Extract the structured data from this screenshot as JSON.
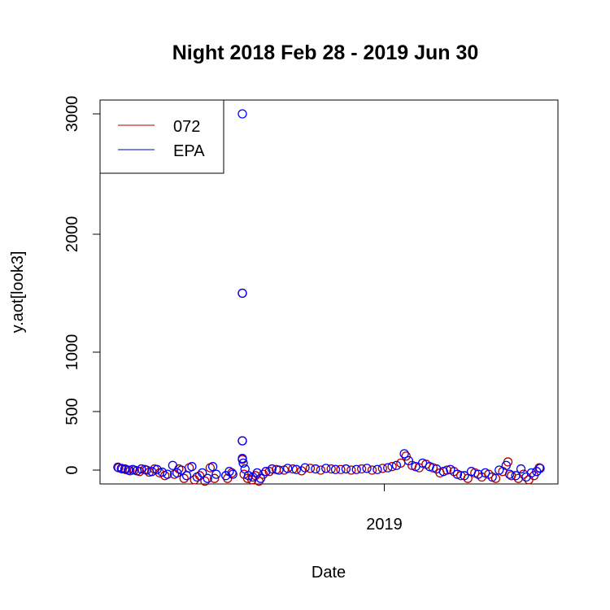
{
  "chart_data": {
    "type": "scatter",
    "title": "Night  2018 Feb 28 - 2019 Jun 30",
    "xlabel": "Date",
    "ylabel": "y.aot[look3]",
    "x_range": [
      "2018-02-28",
      "2019-06-30"
    ],
    "ylim": [
      -100,
      3100
    ],
    "x_ticks": [
      {
        "date": "2019-01-01",
        "label": "2019"
      }
    ],
    "y_ticks": [
      0,
      500,
      1000,
      2000,
      3000
    ],
    "legend": {
      "position": "top-left",
      "entries": [
        {
          "label": "072",
          "color": "#b00000"
        },
        {
          "label": "EPA",
          "color": "#0000cc"
        }
      ]
    },
    "series": [
      {
        "name": "072",
        "color": "#b00000",
        "points": [
          {
            "x": "2018-03-02",
            "y": 20
          },
          {
            "x": "2018-03-06",
            "y": 10
          },
          {
            "x": "2018-03-10",
            "y": 5
          },
          {
            "x": "2018-03-15",
            "y": -5
          },
          {
            "x": "2018-03-20",
            "y": 0
          },
          {
            "x": "2018-03-26",
            "y": -10
          },
          {
            "x": "2018-04-01",
            "y": 5
          },
          {
            "x": "2018-04-06",
            "y": -15
          },
          {
            "x": "2018-04-12",
            "y": 10
          },
          {
            "x": "2018-04-18",
            "y": -20
          },
          {
            "x": "2018-04-24",
            "y": -40
          },
          {
            "x": "2018-05-05",
            "y": -30
          },
          {
            "x": "2018-05-10",
            "y": 10
          },
          {
            "x": "2018-05-16",
            "y": -60
          },
          {
            "x": "2018-05-22",
            "y": 20
          },
          {
            "x": "2018-05-28",
            "y": -70
          },
          {
            "x": "2018-06-03",
            "y": -40
          },
          {
            "x": "2018-06-09",
            "y": -80
          },
          {
            "x": "2018-06-15",
            "y": 20
          },
          {
            "x": "2018-06-20",
            "y": -60
          },
          {
            "x": "2018-07-05",
            "y": -60
          },
          {
            "x": "2018-07-10",
            "y": -20
          },
          {
            "x": "2018-07-22",
            "y": 1500
          },
          {
            "x": "2018-07-22",
            "y": 250
          },
          {
            "x": "2018-07-22",
            "y": 90
          },
          {
            "x": "2018-07-24",
            "y": -30
          },
          {
            "x": "2018-07-28",
            "y": -60
          },
          {
            "x": "2018-08-02",
            "y": -70
          },
          {
            "x": "2018-08-06",
            "y": -40
          },
          {
            "x": "2018-08-10",
            "y": -80
          },
          {
            "x": "2018-08-15",
            "y": -30
          },
          {
            "x": "2018-08-22",
            "y": -10
          },
          {
            "x": "2018-08-30",
            "y": 5
          },
          {
            "x": "2018-09-08",
            "y": 0
          },
          {
            "x": "2018-09-18",
            "y": 10
          },
          {
            "x": "2018-09-28",
            "y": -5
          },
          {
            "x": "2018-10-08",
            "y": 15
          },
          {
            "x": "2018-10-20",
            "y": 0
          },
          {
            "x": "2018-11-01",
            "y": 10
          },
          {
            "x": "2018-11-12",
            "y": 5
          },
          {
            "x": "2018-11-24",
            "y": 0
          },
          {
            "x": "2018-12-06",
            "y": 10
          },
          {
            "x": "2018-12-18",
            "y": 0
          },
          {
            "x": "2018-12-30",
            "y": 15
          },
          {
            "x": "2019-01-10",
            "y": 30
          },
          {
            "x": "2019-01-20",
            "y": 60
          },
          {
            "x": "2019-01-26",
            "y": 120
          },
          {
            "x": "2019-02-02",
            "y": 40
          },
          {
            "x": "2019-02-10",
            "y": 20
          },
          {
            "x": "2019-02-18",
            "y": 50
          },
          {
            "x": "2019-02-26",
            "y": 20
          },
          {
            "x": "2019-03-06",
            "y": -20
          },
          {
            "x": "2019-03-14",
            "y": 0
          },
          {
            "x": "2019-03-22",
            "y": -10
          },
          {
            "x": "2019-03-30",
            "y": -40
          },
          {
            "x": "2019-04-07",
            "y": -60
          },
          {
            "x": "2019-04-15",
            "y": -20
          },
          {
            "x": "2019-04-23",
            "y": -50
          },
          {
            "x": "2019-05-01",
            "y": -30
          },
          {
            "x": "2019-05-09",
            "y": -60
          },
          {
            "x": "2019-05-17",
            "y": -10
          },
          {
            "x": "2019-05-23",
            "y": 70
          },
          {
            "x": "2019-05-27",
            "y": -40
          },
          {
            "x": "2019-06-04",
            "y": -60
          },
          {
            "x": "2019-06-10",
            "y": -30
          },
          {
            "x": "2019-06-16",
            "y": -70
          },
          {
            "x": "2019-06-22",
            "y": -40
          },
          {
            "x": "2019-06-28",
            "y": 20
          }
        ]
      },
      {
        "name": "EPA",
        "color": "#0000ff",
        "points": [
          {
            "x": "2018-03-01",
            "y": 25
          },
          {
            "x": "2018-03-05",
            "y": 15
          },
          {
            "x": "2018-03-09",
            "y": 10
          },
          {
            "x": "2018-03-13",
            "y": 0
          },
          {
            "x": "2018-03-18",
            "y": 5
          },
          {
            "x": "2018-03-23",
            "y": -5
          },
          {
            "x": "2018-03-28",
            "y": 10
          },
          {
            "x": "2018-04-03",
            "y": 0
          },
          {
            "x": "2018-04-09",
            "y": -10
          },
          {
            "x": "2018-04-15",
            "y": 5
          },
          {
            "x": "2018-04-21",
            "y": -15
          },
          {
            "x": "2018-04-27",
            "y": -30
          },
          {
            "x": "2018-05-03",
            "y": 40
          },
          {
            "x": "2018-05-08",
            "y": -20
          },
          {
            "x": "2018-05-13",
            "y": 0
          },
          {
            "x": "2018-05-19",
            "y": -40
          },
          {
            "x": "2018-05-25",
            "y": 30
          },
          {
            "x": "2018-05-31",
            "y": -50
          },
          {
            "x": "2018-06-06",
            "y": -20
          },
          {
            "x": "2018-06-12",
            "y": -60
          },
          {
            "x": "2018-06-18",
            "y": 30
          },
          {
            "x": "2018-06-22",
            "y": -30
          },
          {
            "x": "2018-07-03",
            "y": -40
          },
          {
            "x": "2018-07-07",
            "y": -10
          },
          {
            "x": "2018-07-11",
            "y": -30
          },
          {
            "x": "2018-07-22",
            "y": 3000
          },
          {
            "x": "2018-07-22",
            "y": 1500
          },
          {
            "x": "2018-07-22",
            "y": 250
          },
          {
            "x": "2018-07-22",
            "y": 100
          },
          {
            "x": "2018-07-23",
            "y": 60
          },
          {
            "x": "2018-07-25",
            "y": 10
          },
          {
            "x": "2018-07-29",
            "y": -40
          },
          {
            "x": "2018-08-03",
            "y": -50
          },
          {
            "x": "2018-08-08",
            "y": -20
          },
          {
            "x": "2018-08-12",
            "y": -60
          },
          {
            "x": "2018-08-18",
            "y": -10
          },
          {
            "x": "2018-08-25",
            "y": 10
          },
          {
            "x": "2018-09-02",
            "y": 0
          },
          {
            "x": "2018-09-12",
            "y": 15
          },
          {
            "x": "2018-09-22",
            "y": 5
          },
          {
            "x": "2018-10-02",
            "y": 20
          },
          {
            "x": "2018-10-14",
            "y": 10
          },
          {
            "x": "2018-10-26",
            "y": 15
          },
          {
            "x": "2018-11-06",
            "y": 5
          },
          {
            "x": "2018-11-18",
            "y": 10
          },
          {
            "x": "2018-11-30",
            "y": 5
          },
          {
            "x": "2018-12-12",
            "y": 15
          },
          {
            "x": "2018-12-24",
            "y": 5
          },
          {
            "x": "2019-01-05",
            "y": 20
          },
          {
            "x": "2019-01-15",
            "y": 40
          },
          {
            "x": "2019-01-24",
            "y": 140
          },
          {
            "x": "2019-01-29",
            "y": 80
          },
          {
            "x": "2019-02-06",
            "y": 30
          },
          {
            "x": "2019-02-14",
            "y": 60
          },
          {
            "x": "2019-02-22",
            "y": 30
          },
          {
            "x": "2019-03-02",
            "y": 10
          },
          {
            "x": "2019-03-10",
            "y": -10
          },
          {
            "x": "2019-03-18",
            "y": 5
          },
          {
            "x": "2019-03-26",
            "y": -30
          },
          {
            "x": "2019-04-03",
            "y": -40
          },
          {
            "x": "2019-04-11",
            "y": -10
          },
          {
            "x": "2019-04-19",
            "y": -30
          },
          {
            "x": "2019-04-27",
            "y": -20
          },
          {
            "x": "2019-05-05",
            "y": -50
          },
          {
            "x": "2019-05-13",
            "y": 0
          },
          {
            "x": "2019-05-21",
            "y": 40
          },
          {
            "x": "2019-05-25",
            "y": -30
          },
          {
            "x": "2019-06-01",
            "y": -40
          },
          {
            "x": "2019-06-07",
            "y": 10
          },
          {
            "x": "2019-06-13",
            "y": -50
          },
          {
            "x": "2019-06-19",
            "y": -20
          },
          {
            "x": "2019-06-25",
            "y": -10
          },
          {
            "x": "2019-06-29",
            "y": 15
          }
        ]
      }
    ]
  }
}
